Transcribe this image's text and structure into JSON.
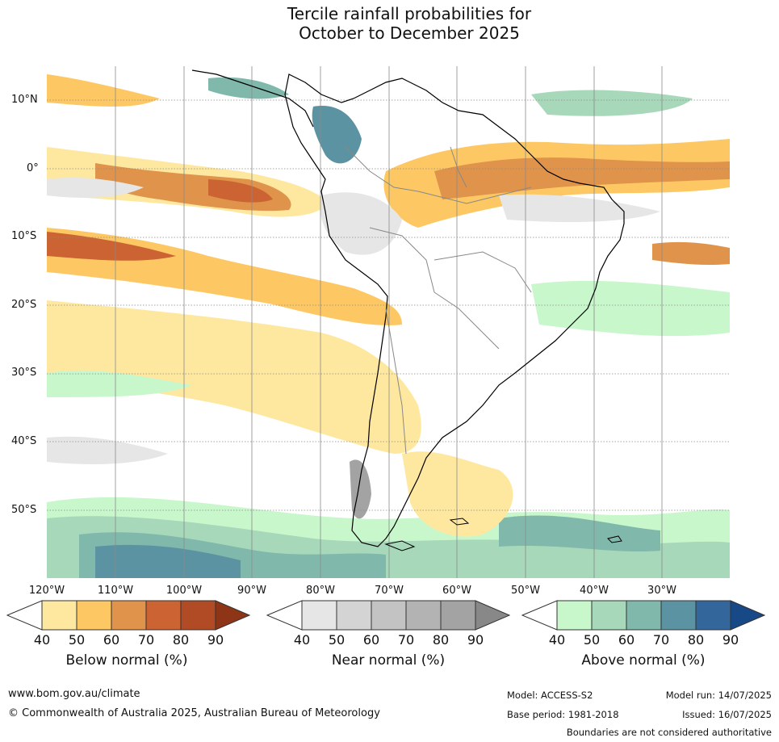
{
  "title": {
    "line1": "Tercile rainfall probabilities for",
    "line2": "October to December 2025"
  },
  "map": {
    "lat_labels": [
      "10°N",
      "0°",
      "10°S",
      "20°S",
      "30°S",
      "40°S",
      "50°S"
    ],
    "lon_labels": [
      "120°W",
      "110°W",
      "100°W",
      "90°W",
      "80°W",
      "70°W",
      "60°W",
      "50°W",
      "40°W",
      "30°W"
    ]
  },
  "colorbars": [
    {
      "name": "below",
      "title": "Below normal (%)",
      "ticks": [
        "40",
        "50",
        "60",
        "70",
        "80",
        "90"
      ],
      "colors": [
        "#ffffff",
        "#fee8a0",
        "#fdc863",
        "#e0934a",
        "#cb6432",
        "#b04b26",
        "#8f3517"
      ]
    },
    {
      "name": "near",
      "title": "Near normal (%)",
      "ticks": [
        "40",
        "50",
        "60",
        "70",
        "80",
        "90"
      ],
      "colors": [
        "#ffffff",
        "#e6e6e6",
        "#d4d4d4",
        "#c3c3c3",
        "#b3b3b3",
        "#a3a3a3",
        "#888888"
      ]
    },
    {
      "name": "above",
      "title": "Above normal (%)",
      "ticks": [
        "40",
        "50",
        "60",
        "70",
        "80",
        "90"
      ],
      "colors": [
        "#ffffff",
        "#c8f7cc",
        "#a6d8b9",
        "#80b8ac",
        "#5c93a2",
        "#33669b",
        "#184987"
      ]
    }
  ],
  "footer": {
    "website": "www.bom.gov.au/climate",
    "copyright": "© Commonwealth of Australia 2025, Australian Bureau of Meteorology",
    "model": "Model: ACCESS-S2",
    "base_period": "Base period: 1981-2018",
    "model_run": "Model run: 14/07/2025",
    "issued": "Issued: 16/07/2025",
    "disclaimer": "Boundaries are not considered authoritative"
  }
}
